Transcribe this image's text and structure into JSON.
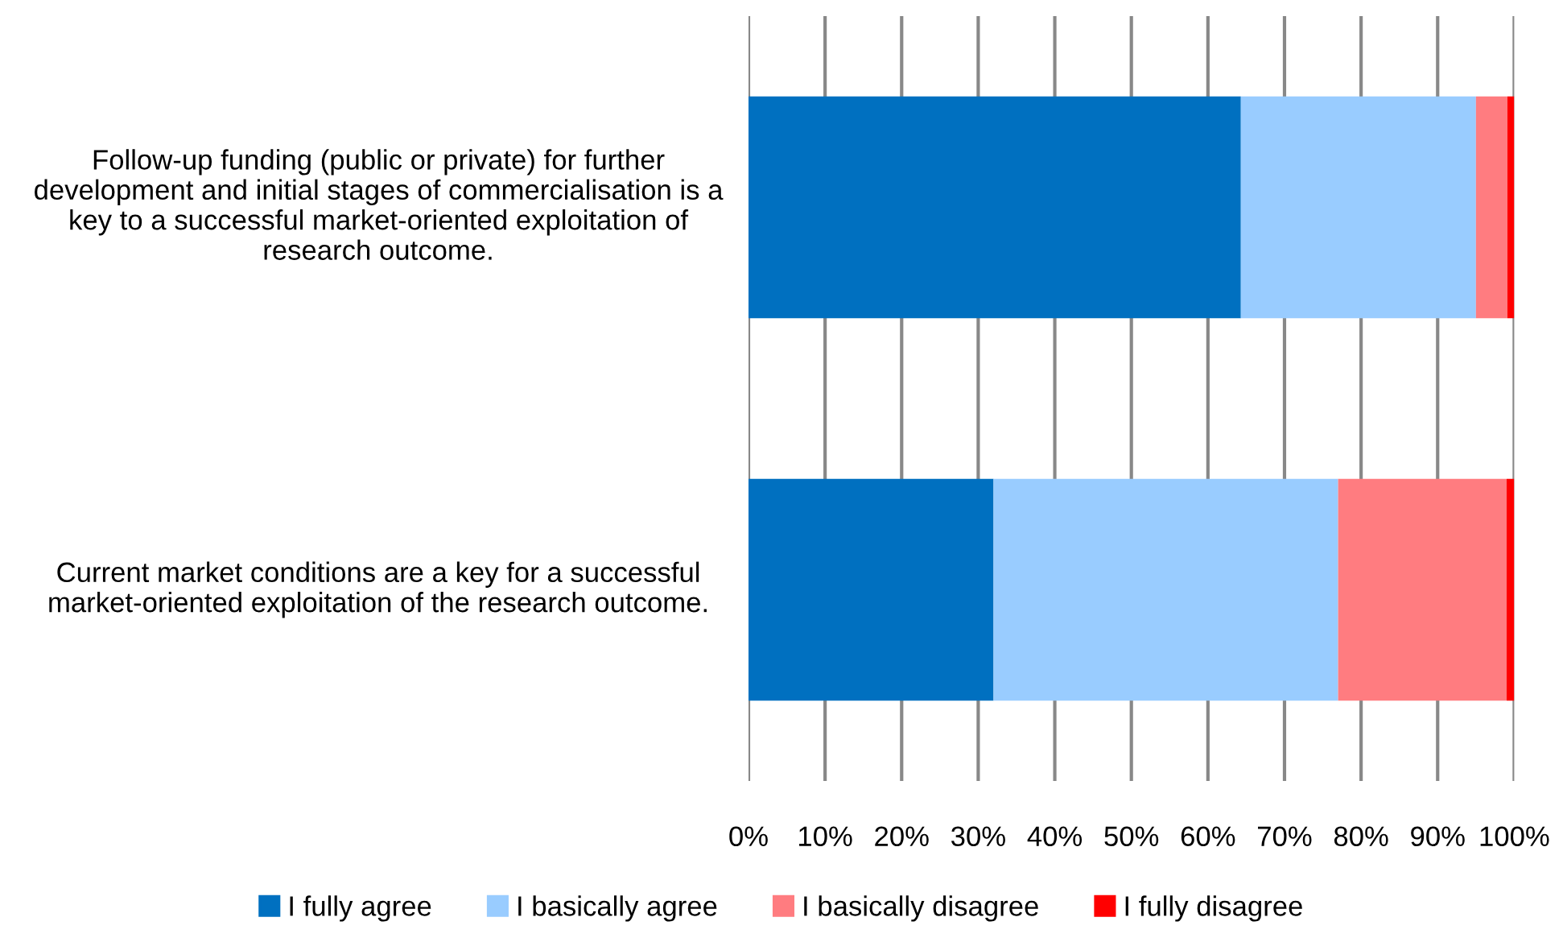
{
  "chart_data": {
    "type": "bar",
    "orientation": "horizontal",
    "stacked": true,
    "categories": [
      "Follow-up funding (public or private) for further development and initial stages of commercialisation is a key to a successful market-oriented exploitation of research outcome.",
      "Current market conditions are a key for a successful market-oriented exploitation of the research outcome."
    ],
    "series": [
      {
        "name": "I fully agree",
        "color": "#0070c0",
        "values": [
          64.3,
          32.0
        ]
      },
      {
        "name": "I basically agree",
        "color": "#99ccff",
        "values": [
          30.7,
          45.0
        ]
      },
      {
        "name": "I basically disagree",
        "color": "#ff7c80",
        "values": [
          4.1,
          22.0
        ]
      },
      {
        "name": "I fully disagree",
        "color": "#ff0000",
        "values": [
          0.9,
          1.0
        ]
      }
    ],
    "xlim": [
      0,
      100
    ],
    "xticks": [
      {
        "value": 0,
        "label": "0%"
      },
      {
        "value": 10,
        "label": "10%"
      },
      {
        "value": 20,
        "label": "20%"
      },
      {
        "value": 30,
        "label": "30%"
      },
      {
        "value": 40,
        "label": "40%"
      },
      {
        "value": 50,
        "label": "50%"
      },
      {
        "value": 60,
        "label": "60%"
      },
      {
        "value": 70,
        "label": "70%"
      },
      {
        "value": 80,
        "label": "80%"
      },
      {
        "value": 90,
        "label": "90%"
      },
      {
        "value": 100,
        "label": "100%"
      }
    ],
    "grid": "x",
    "legend": "bottom"
  }
}
